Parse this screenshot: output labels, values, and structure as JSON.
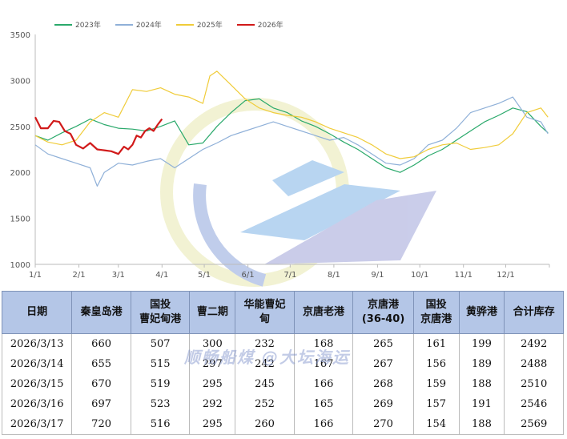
{
  "chart_data": {
    "type": "line",
    "ylim": [
      1000,
      3500
    ],
    "yticks": [
      1000,
      1500,
      2000,
      2500,
      3000,
      3500
    ],
    "xticks": [
      "1/1",
      "2/1",
      "3/1",
      "4/1",
      "5/1",
      "6/1",
      "7/1",
      "8/1",
      "9/1",
      "10/1",
      "11/1",
      "12/1"
    ],
    "x_unit": "day-of-year",
    "grid": false,
    "legend_position": "top-left",
    "series": [
      {
        "name": "2023年",
        "color": "#2aa96b",
        "points": [
          [
            1,
            2400
          ],
          [
            10,
            2350
          ],
          [
            20,
            2430
          ],
          [
            30,
            2500
          ],
          [
            40,
            2580
          ],
          [
            50,
            2520
          ],
          [
            60,
            2480
          ],
          [
            70,
            2470
          ],
          [
            80,
            2450
          ],
          [
            90,
            2500
          ],
          [
            100,
            2560
          ],
          [
            110,
            2300
          ],
          [
            120,
            2320
          ],
          [
            130,
            2500
          ],
          [
            140,
            2650
          ],
          [
            150,
            2780
          ],
          [
            160,
            2800
          ],
          [
            170,
            2700
          ],
          [
            180,
            2650
          ],
          [
            190,
            2560
          ],
          [
            200,
            2500
          ],
          [
            210,
            2420
          ],
          [
            220,
            2330
          ],
          [
            230,
            2250
          ],
          [
            240,
            2150
          ],
          [
            250,
            2050
          ],
          [
            260,
            2000
          ],
          [
            270,
            2080
          ],
          [
            280,
            2180
          ],
          [
            290,
            2250
          ],
          [
            300,
            2350
          ],
          [
            310,
            2450
          ],
          [
            320,
            2550
          ],
          [
            330,
            2620
          ],
          [
            340,
            2700
          ],
          [
            350,
            2660
          ],
          [
            360,
            2500
          ],
          [
            365,
            2430
          ]
        ]
      },
      {
        "name": "2024年",
        "color": "#8fb0d8",
        "points": [
          [
            1,
            2300
          ],
          [
            10,
            2200
          ],
          [
            20,
            2150
          ],
          [
            30,
            2100
          ],
          [
            40,
            2050
          ],
          [
            45,
            1850
          ],
          [
            50,
            2000
          ],
          [
            60,
            2100
          ],
          [
            70,
            2080
          ],
          [
            80,
            2120
          ],
          [
            90,
            2150
          ],
          [
            100,
            2050
          ],
          [
            110,
            2150
          ],
          [
            120,
            2250
          ],
          [
            130,
            2320
          ],
          [
            140,
            2400
          ],
          [
            150,
            2450
          ],
          [
            160,
            2500
          ],
          [
            170,
            2550
          ],
          [
            180,
            2500
          ],
          [
            190,
            2450
          ],
          [
            200,
            2400
          ],
          [
            210,
            2350
          ],
          [
            220,
            2380
          ],
          [
            230,
            2300
          ],
          [
            240,
            2200
          ],
          [
            250,
            2100
          ],
          [
            260,
            2080
          ],
          [
            270,
            2150
          ],
          [
            280,
            2300
          ],
          [
            290,
            2350
          ],
          [
            300,
            2480
          ],
          [
            310,
            2650
          ],
          [
            320,
            2700
          ],
          [
            330,
            2750
          ],
          [
            340,
            2820
          ],
          [
            350,
            2600
          ],
          [
            360,
            2550
          ],
          [
            365,
            2420
          ]
        ]
      },
      {
        "name": "2025年",
        "color": "#f0cc3a",
        "points": [
          [
            1,
            2400
          ],
          [
            10,
            2330
          ],
          [
            20,
            2300
          ],
          [
            30,
            2350
          ],
          [
            40,
            2550
          ],
          [
            50,
            2650
          ],
          [
            60,
            2600
          ],
          [
            70,
            2900
          ],
          [
            80,
            2880
          ],
          [
            90,
            2920
          ],
          [
            100,
            2850
          ],
          [
            110,
            2820
          ],
          [
            120,
            2750
          ],
          [
            125,
            3050
          ],
          [
            130,
            3100
          ],
          [
            140,
            2950
          ],
          [
            150,
            2800
          ],
          [
            160,
            2700
          ],
          [
            170,
            2650
          ],
          [
            180,
            2620
          ],
          [
            190,
            2600
          ],
          [
            200,
            2550
          ],
          [
            210,
            2480
          ],
          [
            220,
            2430
          ],
          [
            230,
            2380
          ],
          [
            240,
            2300
          ],
          [
            250,
            2200
          ],
          [
            260,
            2150
          ],
          [
            270,
            2170
          ],
          [
            280,
            2250
          ],
          [
            290,
            2300
          ],
          [
            300,
            2320
          ],
          [
            310,
            2250
          ],
          [
            320,
            2270
          ],
          [
            330,
            2300
          ],
          [
            340,
            2420
          ],
          [
            350,
            2650
          ],
          [
            360,
            2700
          ],
          [
            365,
            2600
          ]
        ]
      },
      {
        "name": "2026年",
        "color": "#d11a1a",
        "points": [
          [
            1,
            2600
          ],
          [
            5,
            2480
          ],
          [
            10,
            2480
          ],
          [
            14,
            2560
          ],
          [
            18,
            2550
          ],
          [
            22,
            2450
          ],
          [
            26,
            2420
          ],
          [
            30,
            2300
          ],
          [
            35,
            2260
          ],
          [
            40,
            2320
          ],
          [
            45,
            2250
          ],
          [
            50,
            2240
          ],
          [
            55,
            2230
          ],
          [
            60,
            2200
          ],
          [
            64,
            2280
          ],
          [
            67,
            2250
          ],
          [
            70,
            2300
          ],
          [
            73,
            2400
          ],
          [
            76,
            2380
          ],
          [
            79,
            2450
          ],
          [
            82,
            2480
          ],
          [
            85,
            2450
          ],
          [
            88,
            2520
          ],
          [
            91,
            2580
          ]
        ]
      }
    ]
  },
  "table": {
    "headers": [
      "日期",
      "秦皇岛港",
      "国投\n曹妃甸港",
      "曹二期",
      "华能曹妃\n甸",
      "京唐老港",
      "京唐港\n(36-40)",
      "国投\n京唐港",
      "黄骅港",
      "合计库存"
    ],
    "rows": [
      [
        "2026/3/13",
        "660",
        "507",
        "300",
        "232",
        "168",
        "265",
        "161",
        "199",
        "2492"
      ],
      [
        "2026/3/14",
        "655",
        "515",
        "297",
        "242",
        "167",
        "267",
        "156",
        "189",
        "2488"
      ],
      [
        "2026/3/15",
        "670",
        "519",
        "295",
        "245",
        "166",
        "268",
        "159",
        "188",
        "2510"
      ],
      [
        "2026/3/16",
        "697",
        "523",
        "292",
        "252",
        "165",
        "269",
        "157",
        "191",
        "2546"
      ],
      [
        "2026/3/17",
        "720",
        "516",
        "295",
        "260",
        "166",
        "270",
        "154",
        "188",
        "2569"
      ]
    ]
  },
  "watermark": "顺畅船煤 @大坛海运"
}
